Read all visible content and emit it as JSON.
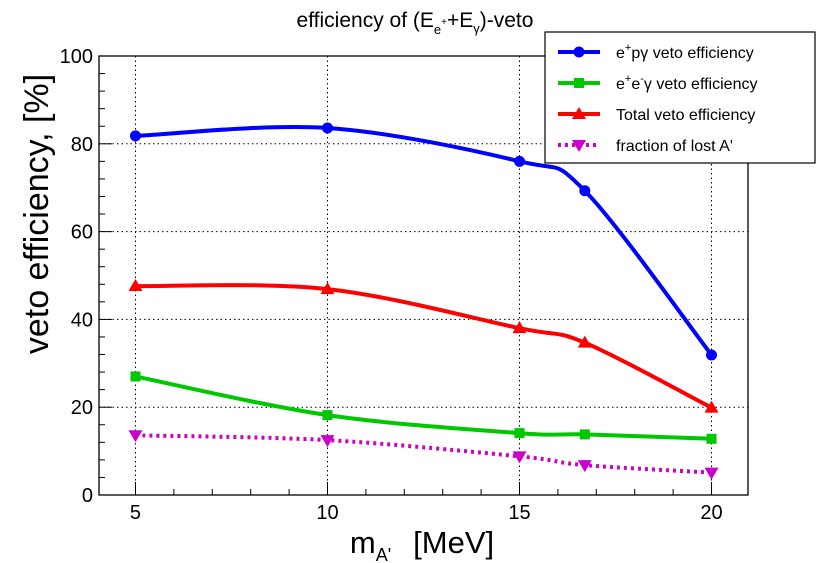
{
  "chart_data": {
    "type": "line",
    "title": {
      "prefix": "efficiency of (E",
      "sub1": "e",
      "sup1": "+",
      "mid": "+E",
      "sub2": "γ",
      "suffix": ")-veto"
    },
    "xlabel": {
      "main": "m",
      "sub": "A'",
      "unit": "[MeV]"
    },
    "ylabel": "veto efficiency, [%]",
    "xlim": [
      4.05,
      20.95
    ],
    "ylim": [
      0,
      100
    ],
    "xticks": [
      "5",
      "10",
      "15",
      "20"
    ],
    "xtick_values": [
      5,
      10,
      15,
      20
    ],
    "yticks": [
      "0",
      "20",
      "40",
      "60",
      "80",
      "100"
    ],
    "ytick_values": [
      0,
      20,
      40,
      60,
      80,
      100
    ],
    "grid": true,
    "legend_position": "top-right",
    "series": [
      {
        "name": "e+pγ veto efficiency",
        "legend_base": "e",
        "legend_sup": "+",
        "legend_rest": "pγ veto efficiency",
        "color": "#0000ff",
        "marker": "circle",
        "dash": "solid",
        "x": [
          5,
          10,
          15,
          16.7,
          20
        ],
        "values": [
          81.8,
          83.6,
          76.0,
          69.3,
          31.9
        ]
      },
      {
        "name": "e+e-γ veto efficiency",
        "legend_base": "e",
        "legend_sup": "+",
        "legend_mid": "e",
        "legend_sup2": "-",
        "legend_rest": "γ veto efficiency",
        "color": "#00c800",
        "marker": "square",
        "dash": "solid",
        "x": [
          5,
          10,
          15,
          16.7,
          20
        ],
        "values": [
          27.0,
          18.2,
          14.1,
          13.8,
          12.8
        ]
      },
      {
        "name": "Total veto efficiency",
        "legend_base": "Total veto efficiency",
        "color": "#ff0000",
        "marker": "triangle-up",
        "dash": "solid",
        "x": [
          5,
          10,
          15,
          16.7,
          20
        ],
        "values": [
          47.6,
          46.9,
          38.0,
          34.7,
          19.9
        ]
      },
      {
        "name": "fraction of lost A'",
        "legend_base": "fraction of lost A'",
        "color": "#cc00cc",
        "marker": "triangle-down",
        "dash": "dotted",
        "x": [
          5,
          10,
          15,
          16.7,
          20
        ],
        "values": [
          13.6,
          12.5,
          8.8,
          6.8,
          5.1
        ]
      }
    ]
  }
}
